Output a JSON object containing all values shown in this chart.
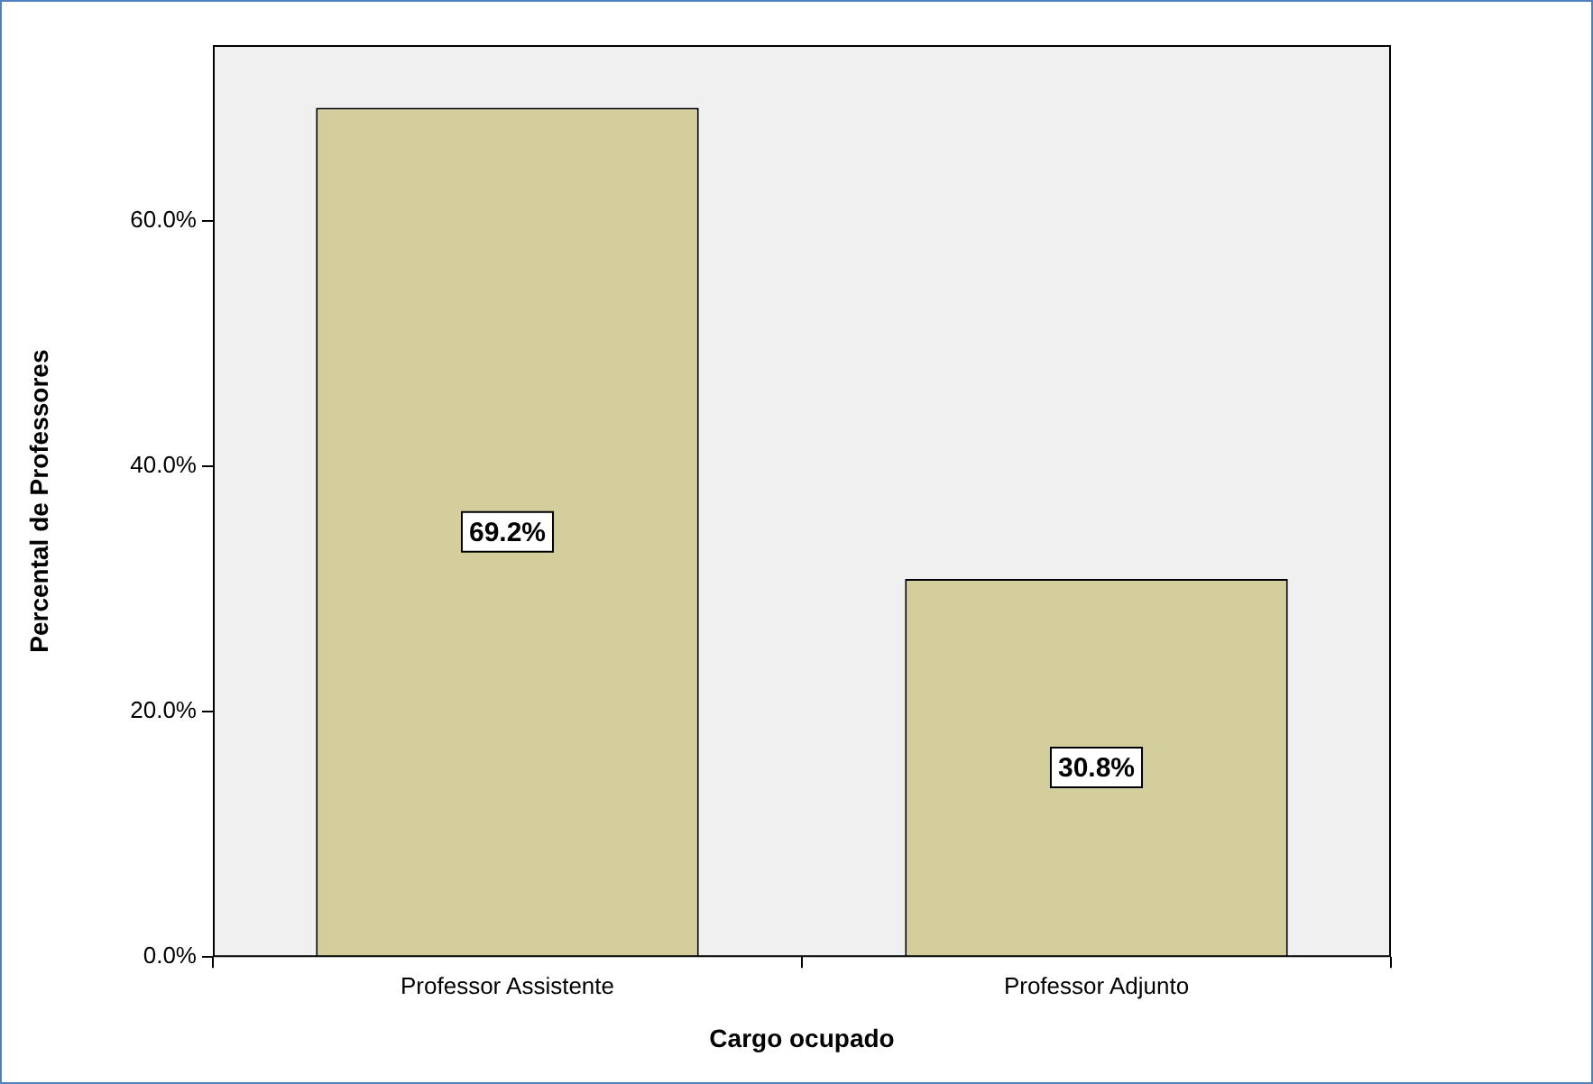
{
  "chart_data": {
    "type": "bar",
    "xlabel": "Cargo ocupado",
    "ylabel": "Percental de Professores",
    "categories": [
      "Professor Assistente",
      "Professor Adjunto"
    ],
    "values": [
      69.2,
      30.8
    ],
    "value_labels": [
      "69.2%",
      "30.8%"
    ],
    "color": "#d3ce9b",
    "ylim": [
      0,
      74.3
    ],
    "yticks": [
      {
        "value": 0,
        "label": "0.0%"
      },
      {
        "value": 20,
        "label": "20.0%"
      },
      {
        "value": 40,
        "label": "40.0%"
      },
      {
        "value": 60,
        "label": "60.0%"
      }
    ],
    "grid": false,
    "legend": false
  }
}
